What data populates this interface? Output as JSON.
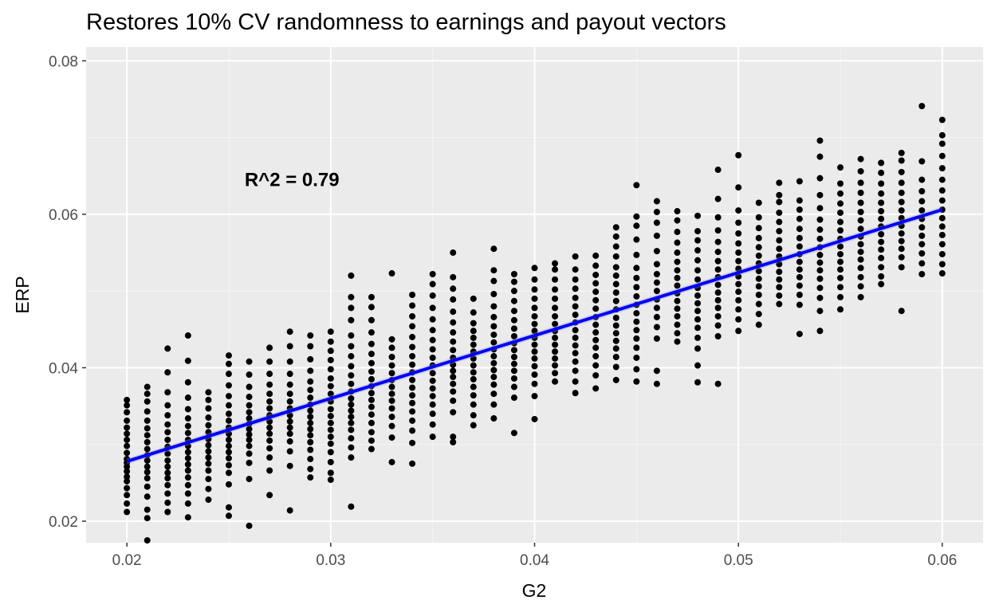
{
  "chart_data": {
    "type": "scatter",
    "title": "Restores 10% CV randomness to earnings and payout vectors",
    "xlabel": "G2",
    "ylabel": "ERP",
    "xlim": [
      0.018,
      0.062
    ],
    "ylim": [
      0.0172,
      0.0818
    ],
    "x_ticks": [
      0.02,
      0.03,
      0.04,
      0.05,
      0.06
    ],
    "x_tick_labels": [
      "0.02",
      "0.03",
      "0.04",
      "0.05",
      "0.06"
    ],
    "y_ticks": [
      0.02,
      0.04,
      0.06,
      0.08
    ],
    "y_tick_labels": [
      "0.02",
      "0.04",
      "0.06",
      "0.08"
    ],
    "grid": true,
    "background": "#ebebeb",
    "point_color": "#000000",
    "fit_color": "#0000ff",
    "annotation": {
      "text": "R^2 = 0.79",
      "x": 0.0281,
      "y": 0.0645
    },
    "fit_line": {
      "x": [
        0.02,
        0.06
      ],
      "y": [
        0.0278,
        0.0606
      ]
    },
    "columns": [
      {
        "x": 0.02,
        "y": [
          0.0212,
          0.0223,
          0.0234,
          0.0243,
          0.0252,
          0.0258,
          0.0265,
          0.0271,
          0.0276,
          0.0281,
          0.0289,
          0.0298,
          0.0306,
          0.0314,
          0.0322,
          0.0331,
          0.0342,
          0.0351,
          0.0358
        ]
      },
      {
        "x": 0.021,
        "y": [
          0.0175,
          0.0204,
          0.0215,
          0.0232,
          0.0245,
          0.0256,
          0.0264,
          0.0271,
          0.0279,
          0.0286,
          0.0294,
          0.0303,
          0.0312,
          0.0321,
          0.0331,
          0.0343,
          0.0356,
          0.0366,
          0.0375
        ]
      },
      {
        "x": 0.022,
        "y": [
          0.0212,
          0.0224,
          0.0236,
          0.0247,
          0.0256,
          0.0263,
          0.0271,
          0.0279,
          0.0288,
          0.0297,
          0.0306,
          0.0316,
          0.0326,
          0.0338,
          0.0351,
          0.0368,
          0.0394,
          0.0425
        ]
      },
      {
        "x": 0.023,
        "y": [
          0.0205,
          0.0223,
          0.0236,
          0.0247,
          0.0257,
          0.0266,
          0.0274,
          0.0282,
          0.029,
          0.0298,
          0.0306,
          0.0315,
          0.0324,
          0.0334,
          0.0346,
          0.0361,
          0.0381,
          0.0409,
          0.0442
        ]
      },
      {
        "x": 0.024,
        "y": [
          0.0228,
          0.0242,
          0.0255,
          0.0266,
          0.0275,
          0.0283,
          0.0291,
          0.0299,
          0.0307,
          0.0316,
          0.0325,
          0.0335,
          0.0347,
          0.0358,
          0.0368
        ]
      },
      {
        "x": 0.025,
        "y": [
          0.0207,
          0.0218,
          0.0248,
          0.0263,
          0.0273,
          0.0282,
          0.029,
          0.0298,
          0.0306,
          0.0314,
          0.0322,
          0.0331,
          0.034,
          0.0351,
          0.0363,
          0.0377,
          0.0392,
          0.0405,
          0.0416
        ]
      },
      {
        "x": 0.026,
        "y": [
          0.0194,
          0.0255,
          0.0276,
          0.0288,
          0.0298,
          0.0306,
          0.0313,
          0.032,
          0.0327,
          0.0334,
          0.0342,
          0.0351,
          0.0362,
          0.0375,
          0.0391,
          0.0408
        ]
      },
      {
        "x": 0.027,
        "y": [
          0.0234,
          0.0266,
          0.0283,
          0.0295,
          0.0305,
          0.0314,
          0.0322,
          0.033,
          0.0338,
          0.0347,
          0.0356,
          0.0366,
          0.0378,
          0.0392,
          0.0408,
          0.0426
        ]
      },
      {
        "x": 0.028,
        "y": [
          0.0214,
          0.0272,
          0.0291,
          0.0304,
          0.0314,
          0.0322,
          0.033,
          0.0338,
          0.0347,
          0.0356,
          0.0366,
          0.0378,
          0.0392,
          0.0408,
          0.0428,
          0.0447
        ]
      },
      {
        "x": 0.029,
        "y": [
          0.0257,
          0.0268,
          0.0281,
          0.0293,
          0.0303,
          0.0312,
          0.032,
          0.0328,
          0.0336,
          0.0344,
          0.0352,
          0.0361,
          0.0371,
          0.0382,
          0.0396,
          0.0411,
          0.0428,
          0.0442
        ]
      },
      {
        "x": 0.03,
        "y": [
          0.0254,
          0.0263,
          0.0277,
          0.029,
          0.0301,
          0.031,
          0.0319,
          0.0328,
          0.0337,
          0.0346,
          0.0356,
          0.0366,
          0.0376,
          0.0386,
          0.0398,
          0.041,
          0.0422,
          0.0434,
          0.0447
        ]
      },
      {
        "x": 0.031,
        "y": [
          0.0219,
          0.0283,
          0.0296,
          0.0308,
          0.0319,
          0.0328,
          0.0336,
          0.0344,
          0.0352,
          0.036,
          0.0369,
          0.0379,
          0.039,
          0.0402,
          0.0415,
          0.0428,
          0.0442,
          0.0462,
          0.0478,
          0.0492,
          0.052
        ]
      },
      {
        "x": 0.032,
        "y": [
          0.0294,
          0.0305,
          0.0316,
          0.0328,
          0.0339,
          0.0349,
          0.0358,
          0.0367,
          0.0376,
          0.0385,
          0.0395,
          0.0406,
          0.0418,
          0.0431,
          0.0446,
          0.0462,
          0.0479,
          0.0492
        ]
      },
      {
        "x": 0.033,
        "y": [
          0.0277,
          0.0309,
          0.0324,
          0.0336,
          0.0347,
          0.0357,
          0.0366,
          0.0375,
          0.0384,
          0.0393,
          0.0403,
          0.0414,
          0.0426,
          0.0437,
          0.0523
        ]
      },
      {
        "x": 0.034,
        "y": [
          0.0275,
          0.0302,
          0.0318,
          0.0331,
          0.0343,
          0.0354,
          0.0364,
          0.0374,
          0.0384,
          0.0394,
          0.0404,
          0.0415,
          0.0427,
          0.044,
          0.0454,
          0.0467,
          0.0481,
          0.0495
        ]
      },
      {
        "x": 0.035,
        "y": [
          0.031,
          0.0326,
          0.034,
          0.0352,
          0.0363,
          0.0373,
          0.0383,
          0.0393,
          0.0403,
          0.0413,
          0.0424,
          0.0436,
          0.0449,
          0.0463,
          0.0478,
          0.0494,
          0.0509,
          0.0522
        ]
      },
      {
        "x": 0.036,
        "y": [
          0.0303,
          0.031,
          0.0342,
          0.0357,
          0.0369,
          0.0379,
          0.0388,
          0.0396,
          0.0404,
          0.0413,
          0.0423,
          0.0434,
          0.0446,
          0.0459,
          0.0473,
          0.0489,
          0.0503,
          0.0518,
          0.055
        ]
      },
      {
        "x": 0.037,
        "y": [
          0.0325,
          0.0338,
          0.0352,
          0.0364,
          0.0375,
          0.0385,
          0.0394,
          0.0403,
          0.0412,
          0.0421,
          0.043,
          0.0439,
          0.0448,
          0.0458,
          0.0472,
          0.049
        ]
      },
      {
        "x": 0.038,
        "y": [
          0.0334,
          0.0352,
          0.0366,
          0.0378,
          0.0388,
          0.0397,
          0.0406,
          0.0415,
          0.0424,
          0.0433,
          0.0443,
          0.0454,
          0.0466,
          0.048,
          0.0496,
          0.0513,
          0.0527,
          0.0555
        ]
      },
      {
        "x": 0.039,
        "y": [
          0.0315,
          0.0361,
          0.0375,
          0.0386,
          0.0396,
          0.0405,
          0.0414,
          0.0423,
          0.0432,
          0.0441,
          0.0451,
          0.0462,
          0.0474,
          0.0487,
          0.05,
          0.0512,
          0.0522
        ]
      },
      {
        "x": 0.04,
        "y": [
          0.0333,
          0.0363,
          0.0379,
          0.0391,
          0.0402,
          0.0412,
          0.0421,
          0.043,
          0.0439,
          0.0448,
          0.0457,
          0.0467,
          0.0478,
          0.049,
          0.0502,
          0.0515,
          0.053
        ]
      },
      {
        "x": 0.041,
        "y": [
          0.0382,
          0.0393,
          0.0403,
          0.0412,
          0.0421,
          0.043,
          0.0439,
          0.0448,
          0.0457,
          0.0467,
          0.0478,
          0.049,
          0.0502,
          0.0515,
          0.0528,
          0.0536
        ]
      },
      {
        "x": 0.042,
        "y": [
          0.0367,
          0.0382,
          0.0396,
          0.0408,
          0.0419,
          0.0429,
          0.0439,
          0.0449,
          0.0459,
          0.0469,
          0.048,
          0.0491,
          0.0503,
          0.0515,
          0.0528,
          0.0545
        ]
      },
      {
        "x": 0.043,
        "y": [
          0.0373,
          0.039,
          0.0403,
          0.0415,
          0.0426,
          0.0436,
          0.0446,
          0.0456,
          0.0466,
          0.0477,
          0.0488,
          0.0499,
          0.051,
          0.0521,
          0.0533,
          0.0546
        ]
      },
      {
        "x": 0.044,
        "y": [
          0.0384,
          0.0401,
          0.0414,
          0.0425,
          0.0435,
          0.0445,
          0.0455,
          0.0465,
          0.0476,
          0.0487,
          0.0498,
          0.0509,
          0.052,
          0.0531,
          0.0545,
          0.0558,
          0.0571,
          0.0583
        ]
      },
      {
        "x": 0.045,
        "y": [
          0.0382,
          0.0398,
          0.0413,
          0.0426,
          0.0438,
          0.0449,
          0.046,
          0.0471,
          0.0482,
          0.0493,
          0.0505,
          0.0517,
          0.053,
          0.0547,
          0.0567,
          0.0585,
          0.0597,
          0.0638
        ]
      },
      {
        "x": 0.046,
        "y": [
          0.0379,
          0.0396,
          0.0438,
          0.0453,
          0.0466,
          0.0478,
          0.0489,
          0.05,
          0.0511,
          0.0522,
          0.0535,
          0.0552,
          0.0572,
          0.0589,
          0.0603,
          0.0617
        ]
      },
      {
        "x": 0.047,
        "y": [
          0.0434,
          0.0445,
          0.0456,
          0.0467,
          0.0477,
          0.0487,
          0.0497,
          0.0507,
          0.0517,
          0.0527,
          0.0538,
          0.055,
          0.0563,
          0.0577,
          0.0592,
          0.0604
        ]
      },
      {
        "x": 0.048,
        "y": [
          0.0381,
          0.0403,
          0.0425,
          0.0439,
          0.0452,
          0.0463,
          0.0474,
          0.0484,
          0.0494,
          0.0504,
          0.0515,
          0.0527,
          0.054,
          0.0553,
          0.0566,
          0.0578,
          0.0598
        ]
      },
      {
        "x": 0.049,
        "y": [
          0.0379,
          0.0441,
          0.0455,
          0.0467,
          0.0478,
          0.0488,
          0.0498,
          0.0508,
          0.0518,
          0.0528,
          0.0539,
          0.0551,
          0.0564,
          0.0579,
          0.0596,
          0.062,
          0.0658
        ]
      },
      {
        "x": 0.05,
        "y": [
          0.0448,
          0.0463,
          0.0476,
          0.0488,
          0.0499,
          0.0509,
          0.0519,
          0.0529,
          0.0539,
          0.055,
          0.0562,
          0.0575,
          0.0589,
          0.0605,
          0.0635,
          0.0677
        ]
      },
      {
        "x": 0.051,
        "y": [
          0.0456,
          0.047,
          0.0483,
          0.0495,
          0.0506,
          0.0516,
          0.0526,
          0.0536,
          0.0546,
          0.0557,
          0.0569,
          0.0582,
          0.0596,
          0.0615
        ]
      },
      {
        "x": 0.052,
        "y": [
          0.0483,
          0.0494,
          0.0505,
          0.0515,
          0.0525,
          0.0535,
          0.0545,
          0.0555,
          0.0566,
          0.0578,
          0.059,
          0.0602,
          0.0616,
          0.0625,
          0.0641
        ]
      },
      {
        "x": 0.053,
        "y": [
          0.0444,
          0.0482,
          0.0495,
          0.0507,
          0.0518,
          0.0528,
          0.0538,
          0.0548,
          0.0558,
          0.0569,
          0.0581,
          0.0594,
          0.0606,
          0.0618,
          0.0643
        ]
      },
      {
        "x": 0.054,
        "y": [
          0.0448,
          0.0474,
          0.0491,
          0.0504,
          0.0516,
          0.0527,
          0.0537,
          0.0547,
          0.0557,
          0.0568,
          0.058,
          0.0593,
          0.0608,
          0.0625,
          0.0647,
          0.0675,
          0.0696
        ]
      },
      {
        "x": 0.055,
        "y": [
          0.0476,
          0.0492,
          0.0505,
          0.0517,
          0.0528,
          0.0538,
          0.0548,
          0.0558,
          0.0568,
          0.0579,
          0.059,
          0.0602,
          0.0614,
          0.0627,
          0.064,
          0.0661
        ]
      },
      {
        "x": 0.056,
        "y": [
          0.0492,
          0.0506,
          0.0518,
          0.053,
          0.0541,
          0.0551,
          0.0561,
          0.0571,
          0.0581,
          0.0592,
          0.0603,
          0.0615,
          0.0628,
          0.0641,
          0.0656,
          0.0672
        ]
      },
      {
        "x": 0.057,
        "y": [
          0.0509,
          0.0519,
          0.0531,
          0.0543,
          0.0554,
          0.0564,
          0.0574,
          0.0584,
          0.0594,
          0.0604,
          0.0615,
          0.0627,
          0.064,
          0.0654,
          0.0667
        ]
      },
      {
        "x": 0.058,
        "y": [
          0.0474,
          0.0531,
          0.0544,
          0.0555,
          0.0565,
          0.0575,
          0.0585,
          0.0595,
          0.0605,
          0.0616,
          0.0628,
          0.0641,
          0.0655,
          0.067,
          0.068
        ]
      },
      {
        "x": 0.059,
        "y": [
          0.0522,
          0.0536,
          0.0549,
          0.0561,
          0.0572,
          0.0583,
          0.0594,
          0.0605,
          0.0617,
          0.063,
          0.0645,
          0.0669,
          0.0741
        ]
      },
      {
        "x": 0.06,
        "y": [
          0.0523,
          0.0535,
          0.0548,
          0.0561,
          0.0573,
          0.0584,
          0.0595,
          0.0606,
          0.0618,
          0.0631,
          0.0645,
          0.066,
          0.0676,
          0.0692,
          0.0703,
          0.0723
        ]
      }
    ]
  }
}
